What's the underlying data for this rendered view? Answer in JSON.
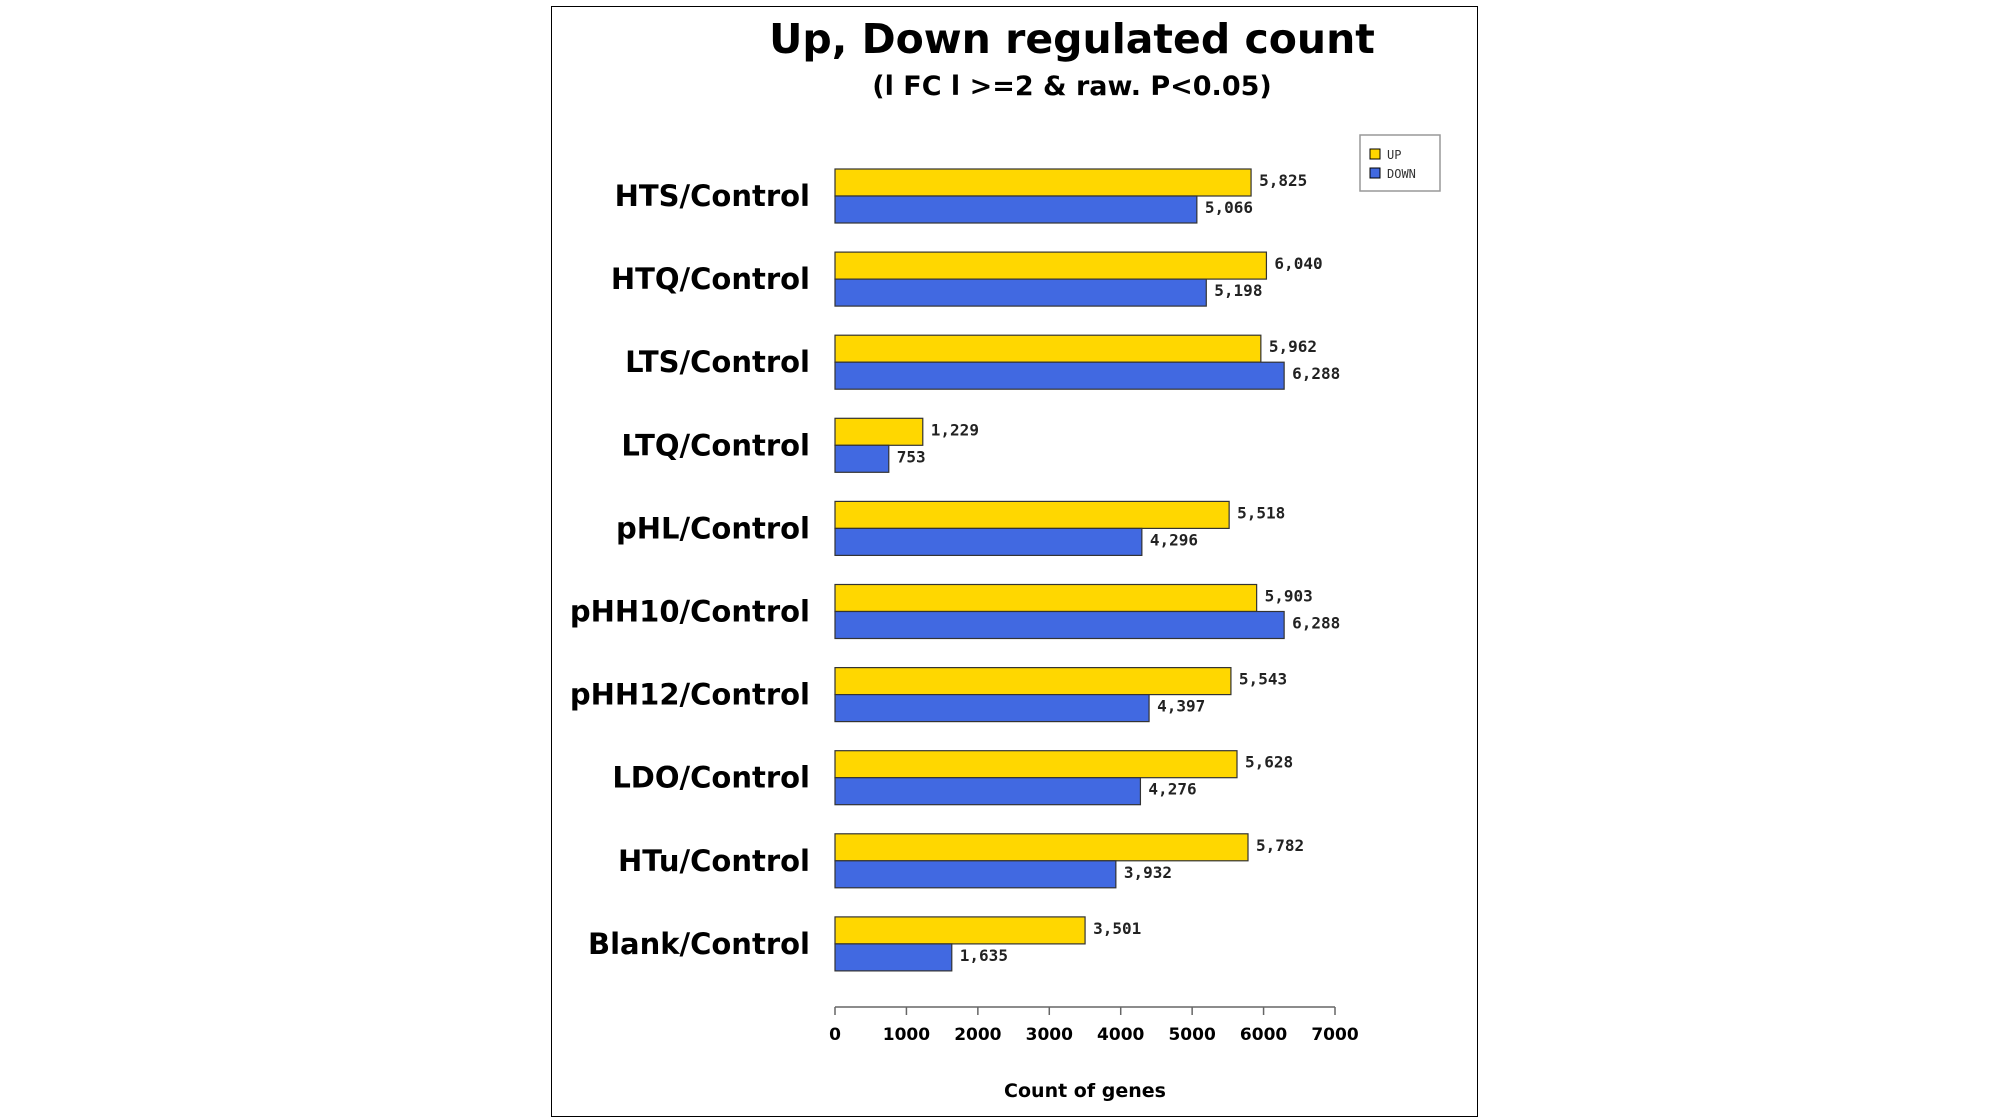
{
  "chart_data": {
    "type": "bar",
    "orientation": "horizontal",
    "title": "Up, Down regulated count",
    "subtitle": "(l FC l >=2 & raw. P<0.05)",
    "xlabel": "Count of genes",
    "ylabel": "",
    "xlim": [
      0,
      7000
    ],
    "xticks": [
      0,
      1000,
      2000,
      3000,
      4000,
      5000,
      6000,
      7000
    ],
    "grid": false,
    "legend_position": "top-right",
    "categories": [
      "HTS/Control",
      "HTQ/Control",
      "LTS/Control",
      "LTQ/Control",
      "pHL/Control",
      "pHH10/Control",
      "pHH12/Control",
      "LDO/Control",
      "HTu/Control",
      "Blank/Control"
    ],
    "series": [
      {
        "name": "UP",
        "color": "#FFD700",
        "values": [
          5825,
          6040,
          5962,
          1229,
          5518,
          5903,
          5543,
          5628,
          5782,
          3501
        ],
        "labels": [
          "5,825",
          "6,040",
          "5,962",
          "1,229",
          "5,518",
          "5,903",
          "5,543",
          "5,628",
          "5,782",
          "3,501"
        ]
      },
      {
        "name": "DOWN",
        "color": "#4169E1",
        "values": [
          5066,
          5198,
          6288,
          753,
          4296,
          6288,
          4397,
          4276,
          3932,
          1635
        ],
        "labels": [
          "5,066",
          "5,198",
          "6,288",
          "753",
          "4,296",
          "6,288",
          "4,397",
          "4,276",
          "3,932",
          "1,635"
        ]
      }
    ]
  }
}
